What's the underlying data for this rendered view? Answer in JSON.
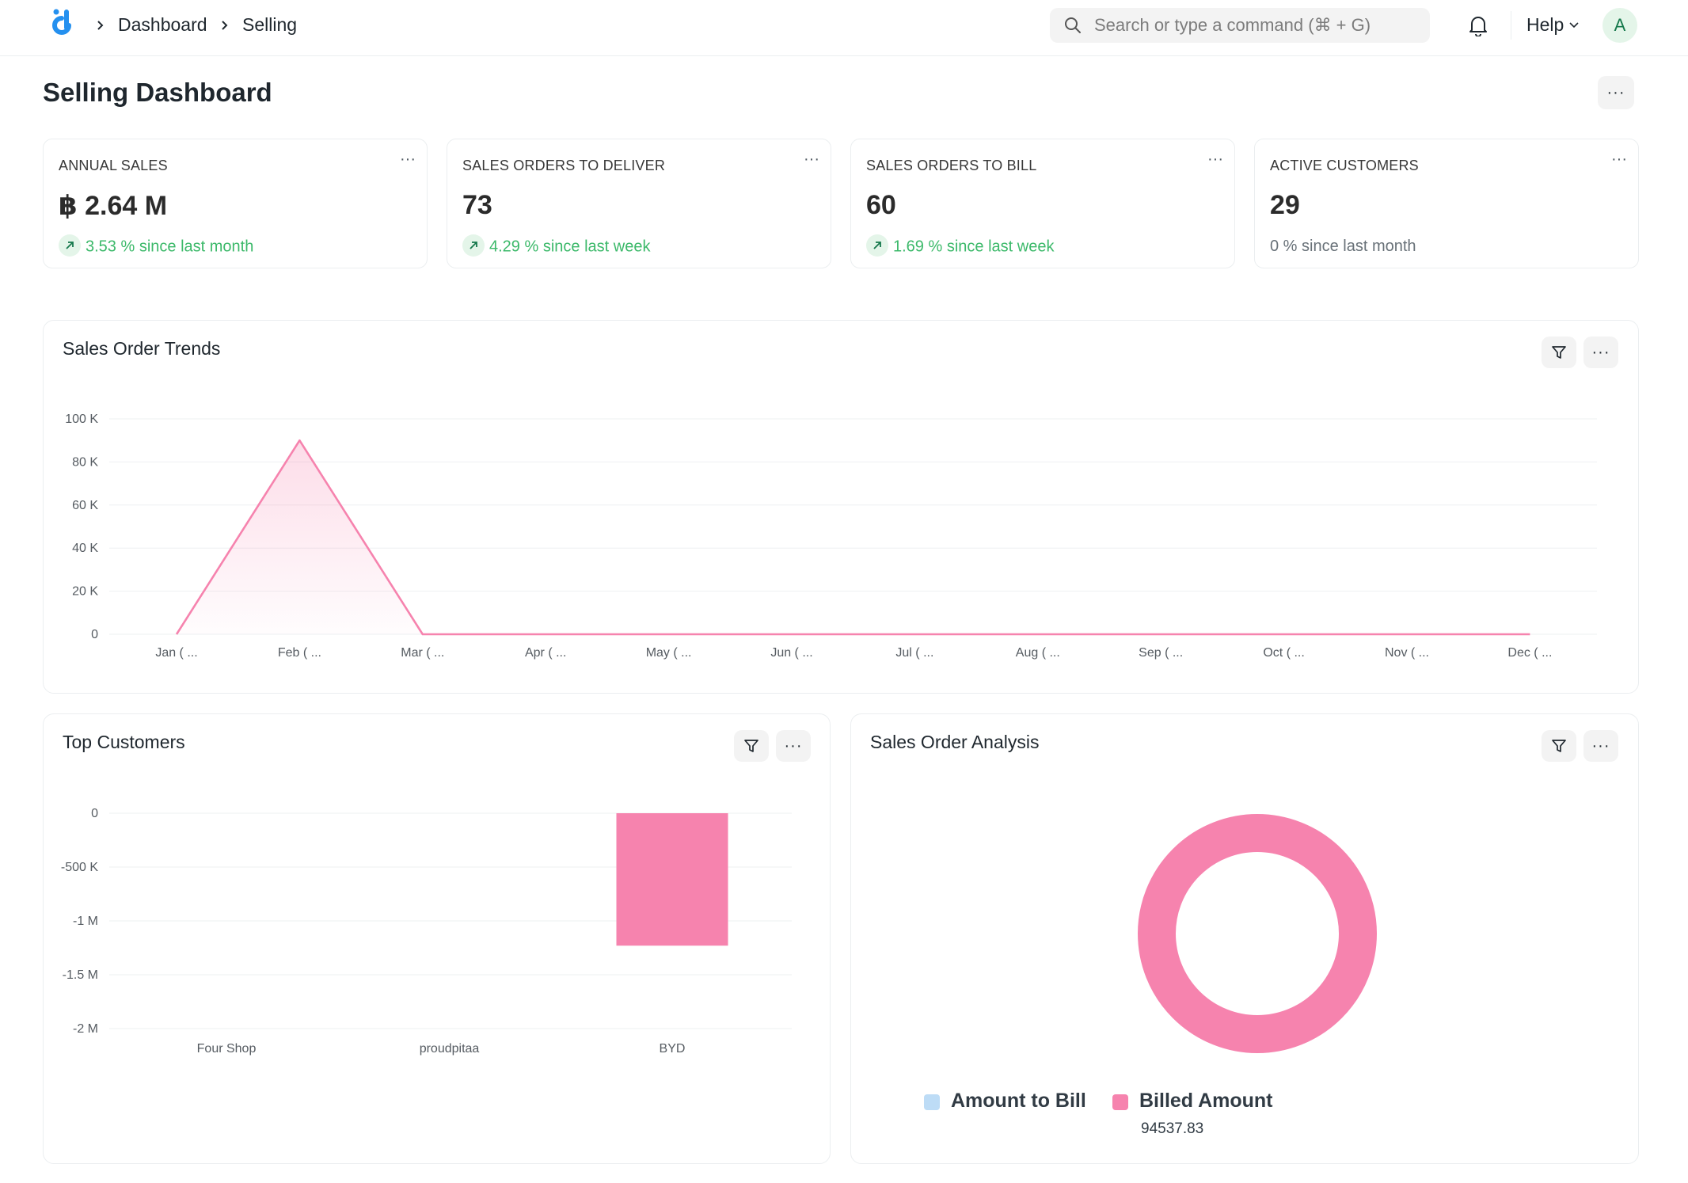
{
  "navbar": {
    "breadcrumbs": [
      "Dashboard",
      "Selling"
    ],
    "search_placeholder": "Search or type a command (⌘ + G)",
    "help_label": "Help",
    "avatar_initial": "A",
    "icons": [
      "logo-icon",
      "chevron-right-icon",
      "search-icon",
      "bell-icon",
      "chevron-down-icon"
    ]
  },
  "page": {
    "title": "Selling Dashboard",
    "menu_label": "···"
  },
  "number_cards": [
    {
      "title": "ANNUAL SALES",
      "value": "฿ 2.64 M",
      "stat": "3.53 % since last month",
      "trend": "up"
    },
    {
      "title": "SALES ORDERS TO DELIVER",
      "value": "73",
      "stat": "4.29 % since last week",
      "trend": "up"
    },
    {
      "title": "SALES ORDERS TO BILL",
      "value": "60",
      "stat": "1.69 % since last week",
      "trend": "up"
    },
    {
      "title": "ACTIVE CUSTOMERS",
      "value": "29",
      "stat": "0 % since last month",
      "trend": "neutral"
    }
  ],
  "colors": {
    "accent_pink": "#f683ae",
    "light_blue": "#bddcf6",
    "positive_green": "#3cb96a",
    "brand_blue": "#2490ef"
  },
  "chart_data": [
    {
      "type": "line",
      "title": "Sales Order Trends",
      "categories": [
        "Jan ( ...",
        "Feb ( ...",
        "Mar ( ...",
        "Apr ( ...",
        "May ( ...",
        "Jun ( ...",
        "Jul ( ...",
        "Aug ( ...",
        "Sep ( ...",
        "Oct ( ...",
        "Nov ( ...",
        "Dec ( ..."
      ],
      "values": [
        0,
        90000,
        0,
        0,
        0,
        0,
        0,
        0,
        0,
        0,
        0,
        0
      ],
      "yticks": [
        "100 K",
        "80 K",
        "60 K",
        "40 K",
        "20 K",
        "0"
      ],
      "ylim": [
        0,
        100000
      ],
      "grid": true,
      "area_fill": true
    },
    {
      "type": "bar",
      "title": "Top Customers",
      "categories": [
        "Four Shop",
        "proudpitaa",
        "BYD"
      ],
      "values": [
        0,
        0,
        -1230000
      ],
      "yticks": [
        "0",
        "-500 K",
        "-1 M",
        "-1.5 M",
        "-2 M"
      ],
      "ylim": [
        -2000000,
        0
      ],
      "grid": true
    },
    {
      "type": "pie",
      "title": "Sales Order Analysis",
      "donut": true,
      "series": [
        {
          "name": "Amount to Bill",
          "value": 0,
          "label": ""
        },
        {
          "name": "Billed Amount",
          "value": 94537.83,
          "label": "94537.83"
        }
      ],
      "legend": "bottom"
    }
  ]
}
